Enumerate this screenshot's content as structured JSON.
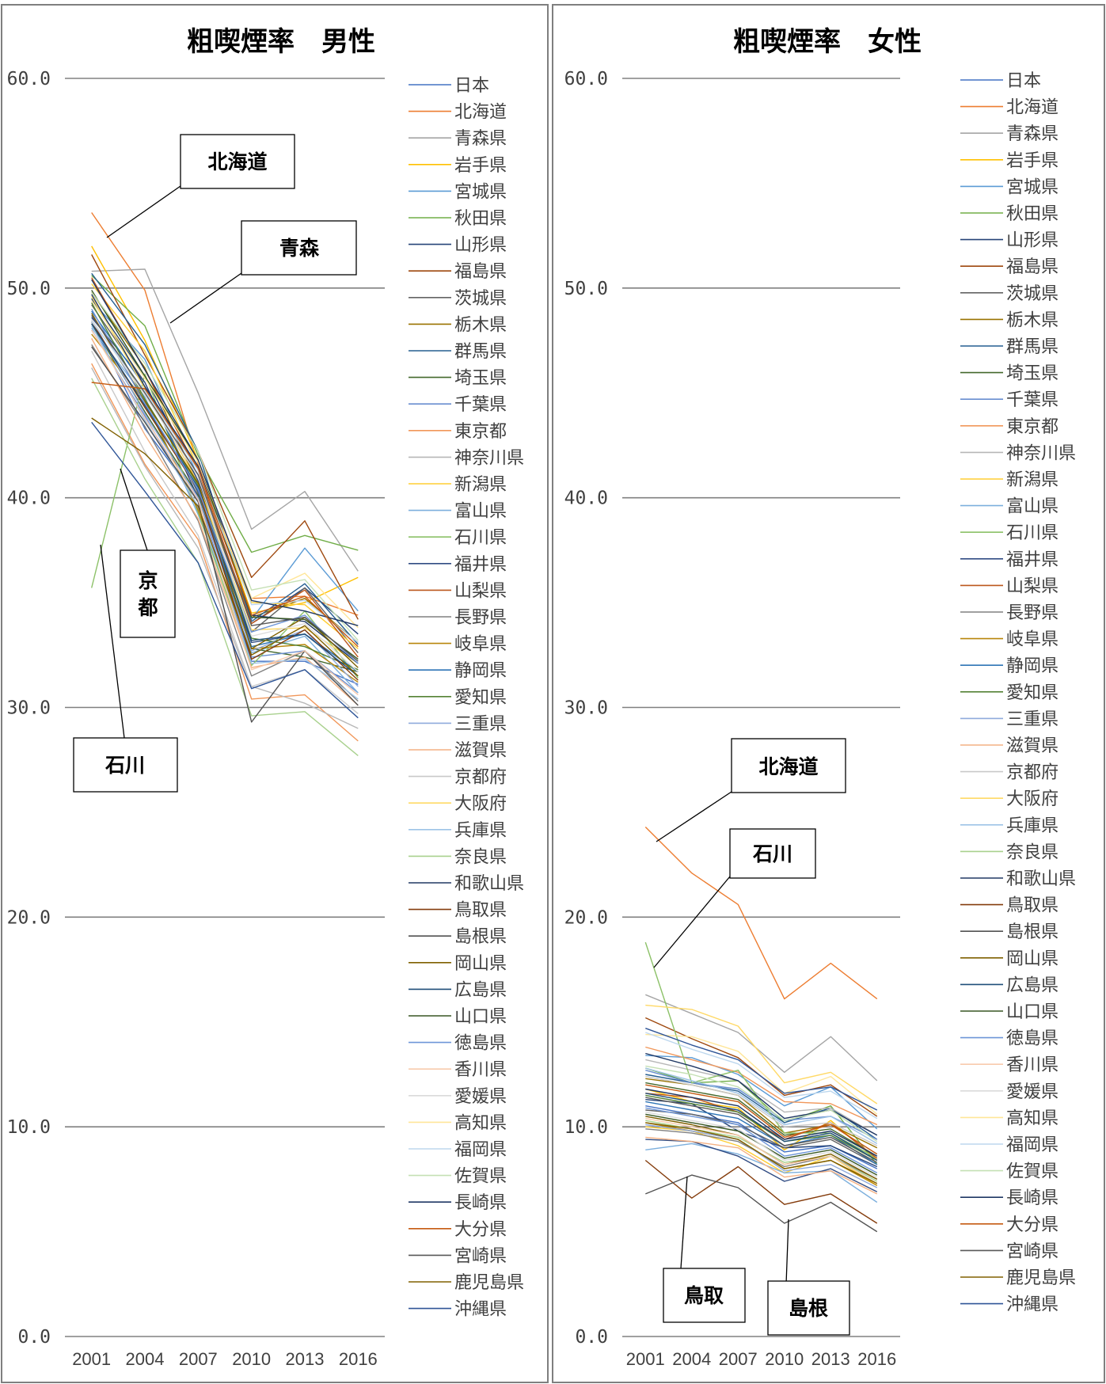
{
  "colors": [
    "#4472C4",
    "#ED7D31",
    "#A5A5A5",
    "#FFC000",
    "#5B9BD5",
    "#70AD47",
    "#264478",
    "#9E480E",
    "#636363",
    "#997300",
    "#255E91",
    "#43682B",
    "#698ED0",
    "#F1975A",
    "#B7B7B7",
    "#FFCD33",
    "#7CAFDD",
    "#8CC168",
    "#314C83",
    "#BB571C",
    "#808080",
    "#B8860B",
    "#2E75B6",
    "#548235",
    "#8FAADC",
    "#F4B183",
    "#C9C9C9",
    "#FFD966",
    "#9DC3E6",
    "#A9D18E",
    "#203864",
    "#843C0C",
    "#525252",
    "#7F6000",
    "#1F4E79",
    "#385723",
    "#6E96D8",
    "#F8CBAD",
    "#DBDBDB",
    "#FFE699",
    "#BDD7EE",
    "#C5E0B4",
    "#1F3864",
    "#C55A11",
    "#595959",
    "#806000",
    "#2F5597"
  ],
  "chart_data": [
    {
      "type": "line",
      "title": "粗喫煙率　男性",
      "x": [
        "2001",
        "2004",
        "2007",
        "2010",
        "2013",
        "2016"
      ],
      "ylim": [
        0,
        60
      ],
      "yticks": [
        "0.0",
        "10.0",
        "20.0",
        "30.0",
        "40.0",
        "50.0",
        "60.0"
      ],
      "grid": true,
      "legend_position": "right",
      "series": [
        {
          "name": "日本",
          "values": [
            48.4,
            43.3,
            39.9,
            32.2,
            32.2,
            31.1
          ]
        },
        {
          "name": "北海道",
          "values": [
            53.6,
            49.9,
            41.6,
            35.2,
            35.3,
            34.4
          ]
        },
        {
          "name": "青森県",
          "values": [
            50.8,
            50.9,
            45.0,
            38.5,
            40.3,
            36.5
          ]
        },
        {
          "name": "岩手県",
          "values": [
            52.0,
            47.5,
            41.8,
            34.5,
            35.0,
            36.2
          ]
        },
        {
          "name": "宮城県",
          "values": [
            49.4,
            46.6,
            41.0,
            34.2,
            37.6,
            34.6
          ]
        },
        {
          "name": "秋田県",
          "values": [
            50.6,
            48.2,
            42.0,
            37.4,
            38.2,
            37.5
          ]
        },
        {
          "name": "山形県",
          "values": [
            49.5,
            45.8,
            40.8,
            34.0,
            35.7,
            33.5
          ]
        },
        {
          "name": "福島県",
          "values": [
            51.6,
            46.8,
            42.2,
            36.2,
            38.9,
            34.2
          ]
        },
        {
          "name": "茨城県",
          "values": [
            49.2,
            45.5,
            40.2,
            33.6,
            35.7,
            32.6
          ]
        },
        {
          "name": "栃木県",
          "values": [
            49.8,
            46.2,
            40.6,
            34.3,
            35.2,
            33.1
          ]
        },
        {
          "name": "群馬県",
          "values": [
            50.7,
            47.3,
            42.2,
            34.1,
            35.9,
            33.0
          ]
        },
        {
          "name": "埼玉県",
          "values": [
            48.3,
            44.1,
            40.1,
            32.8,
            32.4,
            31.7
          ]
        },
        {
          "name": "千葉県",
          "values": [
            48.0,
            43.9,
            39.5,
            32.4,
            32.7,
            30.7
          ]
        },
        {
          "name": "東京都",
          "values": [
            46.4,
            41.6,
            38.0,
            30.4,
            30.6,
            28.4
          ]
        },
        {
          "name": "神奈川県",
          "values": [
            46.2,
            41.5,
            37.6,
            31.0,
            30.2,
            29.0
          ]
        },
        {
          "name": "新潟県",
          "values": [
            50.2,
            47.0,
            41.4,
            35.0,
            34.9,
            32.8
          ]
        },
        {
          "name": "富山県",
          "values": [
            48.1,
            44.8,
            39.2,
            32.6,
            33.4,
            30.7
          ]
        },
        {
          "name": "石川県",
          "values": [
            35.7,
            45.9,
            39.3,
            32.0,
            34.6,
            31.4
          ]
        },
        {
          "name": "福井県",
          "values": [
            48.6,
            45.5,
            40.0,
            33.1,
            33.5,
            31.7
          ]
        },
        {
          "name": "山梨県",
          "values": [
            50.5,
            46.1,
            41.3,
            34.0,
            35.6,
            32.4
          ]
        },
        {
          "name": "長野県",
          "values": [
            47.3,
            43.4,
            38.9,
            31.5,
            32.7,
            30.3
          ]
        },
        {
          "name": "岐阜県",
          "values": [
            47.8,
            44.6,
            39.4,
            32.8,
            33.0,
            31.2
          ]
        },
        {
          "name": "静岡県",
          "values": [
            48.9,
            45.3,
            40.3,
            32.9,
            33.5,
            31.7
          ]
        },
        {
          "name": "愛知県",
          "values": [
            49.3,
            44.7,
            40.6,
            33.3,
            32.9,
            31.8
          ]
        },
        {
          "name": "三重県",
          "values": [
            48.5,
            44.0,
            40.0,
            32.7,
            33.7,
            31.0
          ]
        },
        {
          "name": "滋賀県",
          "values": [
            47.6,
            43.0,
            39.0,
            31.9,
            32.4,
            30.1
          ]
        },
        {
          "name": "京都府",
          "values": [
            47.0,
            42.2,
            38.2,
            31.0,
            31.8,
            29.7
          ]
        },
        {
          "name": "大阪府",
          "values": [
            49.6,
            45.2,
            40.7,
            33.7,
            33.8,
            32.1
          ]
        },
        {
          "name": "兵庫県",
          "values": [
            48.2,
            43.7,
            39.6,
            32.1,
            32.3,
            30.4
          ]
        },
        {
          "name": "奈良県",
          "values": [
            45.7,
            40.9,
            36.9,
            29.6,
            29.8,
            27.7
          ]
        },
        {
          "name": "和歌山県",
          "values": [
            49.7,
            45.3,
            41.5,
            34.4,
            34.1,
            32.1
          ]
        },
        {
          "name": "鳥取県",
          "values": [
            48.4,
            44.3,
            40.4,
            32.3,
            33.7,
            31.3
          ]
        },
        {
          "name": "島根県",
          "values": [
            47.2,
            43.6,
            39.8,
            29.3,
            32.7,
            30.1
          ]
        },
        {
          "name": "岡山県",
          "values": [
            48.8,
            44.6,
            40.7,
            32.8,
            34.3,
            31.9
          ]
        },
        {
          "name": "広島県",
          "values": [
            48.3,
            44.4,
            40.5,
            33.2,
            33.5,
            31.5
          ]
        },
        {
          "name": "山口県",
          "values": [
            49.9,
            45.8,
            41.8,
            34.3,
            34.2,
            32.3
          ]
        },
        {
          "name": "徳島県",
          "values": [
            49.0,
            44.5,
            40.4,
            33.6,
            34.4,
            32.1
          ]
        },
        {
          "name": "香川県",
          "values": [
            48.0,
            43.8,
            39.9,
            31.8,
            32.7,
            30.6
          ]
        },
        {
          "name": "愛媛県",
          "values": [
            48.5,
            44.9,
            41.0,
            33.4,
            34.0,
            31.7
          ]
        },
        {
          "name": "高知県",
          "values": [
            49.4,
            45.7,
            41.7,
            35.2,
            36.4,
            33.8
          ]
        },
        {
          "name": "福岡県",
          "values": [
            48.4,
            45.1,
            41.3,
            34.9,
            35.1,
            33.1
          ]
        },
        {
          "name": "佐賀県",
          "values": [
            49.8,
            46.4,
            42.2,
            35.6,
            36.1,
            33.2
          ]
        },
        {
          "name": "長崎県",
          "values": [
            50.4,
            46.1,
            41.8,
            35.1,
            34.6,
            33.9
          ]
        },
        {
          "name": "大分県",
          "values": [
            45.5,
            45.2,
            41.4,
            34.4,
            35.3,
            32.9
          ]
        },
        {
          "name": "宮崎県",
          "values": [
            48.7,
            45.0,
            41.1,
            33.9,
            34.3,
            32.2
          ]
        },
        {
          "name": "鹿児島県",
          "values": [
            43.8,
            42.1,
            39.6,
            32.5,
            33.9,
            31.5
          ]
        },
        {
          "name": "沖縄県",
          "values": [
            43.6,
            40.3,
            36.9,
            30.9,
            31.8,
            29.5
          ]
        }
      ],
      "annotations": [
        "北海道",
        "青森",
        "京都",
        "石川"
      ]
    },
    {
      "type": "line",
      "title": "粗喫煙率　女性",
      "x": [
        "2001",
        "2004",
        "2007",
        "2010",
        "2013",
        "2016"
      ],
      "ylim": [
        0,
        60
      ],
      "yticks": [
        "0.0",
        "10.0",
        "20.0",
        "30.0",
        "40.0",
        "50.0",
        "60.0"
      ],
      "grid": true,
      "legend_position": "right",
      "series": [
        {
          "name": "日本",
          "values": [
            11.0,
            10.6,
            10.2,
            8.8,
            9.1,
            8.0
          ]
        },
        {
          "name": "北海道",
          "values": [
            24.3,
            22.1,
            20.6,
            16.1,
            17.8,
            16.1
          ]
        },
        {
          "name": "青森県",
          "values": [
            16.3,
            15.4,
            14.5,
            12.6,
            14.3,
            12.2
          ]
        },
        {
          "name": "岩手県",
          "values": [
            11.8,
            11.2,
            10.9,
            8.9,
            10.3,
            8.4
          ]
        },
        {
          "name": "宮城県",
          "values": [
            13.4,
            13.3,
            12.5,
            11.0,
            11.9,
            9.9
          ]
        },
        {
          "name": "秋田県",
          "values": [
            12.8,
            12.1,
            12.2,
            10.2,
            11.0,
            8.2
          ]
        },
        {
          "name": "山形県",
          "values": [
            11.3,
            11.1,
            9.8,
            9.0,
            9.1,
            8.1
          ]
        },
        {
          "name": "福島県",
          "values": [
            15.2,
            14.2,
            13.3,
            11.5,
            12.0,
            10.5
          ]
        },
        {
          "name": "茨城県",
          "values": [
            10.8,
            10.6,
            10.1,
            9.0,
            9.4,
            8.2
          ]
        },
        {
          "name": "栃木県",
          "values": [
            12.3,
            12.0,
            11.5,
            9.7,
            10.1,
            9.0
          ]
        },
        {
          "name": "群馬県",
          "values": [
            12.5,
            12.1,
            11.7,
            10.2,
            10.9,
            9.4
          ]
        },
        {
          "name": "埼玉県",
          "values": [
            12.1,
            11.7,
            11.3,
            9.6,
            9.9,
            8.6
          ]
        },
        {
          "name": "千葉県",
          "values": [
            12.7,
            12.1,
            11.8,
            10.3,
            10.5,
            9.4
          ]
        },
        {
          "name": "東京都",
          "values": [
            13.8,
            13.2,
            12.6,
            11.2,
            11.1,
            10.1
          ]
        },
        {
          "name": "神奈川県",
          "values": [
            13.2,
            12.7,
            12.2,
            10.7,
            10.9,
            9.6
          ]
        },
        {
          "name": "新潟県",
          "values": [
            10.0,
            9.8,
            9.1,
            7.8,
            8.6,
            7.2
          ]
        },
        {
          "name": "富山県",
          "values": [
            8.9,
            9.2,
            8.7,
            7.8,
            7.9,
            6.4
          ]
        },
        {
          "name": "石川県",
          "values": [
            18.8,
            12.1,
            12.7,
            9.7,
            9.7,
            8.5
          ]
        },
        {
          "name": "福井県",
          "values": [
            9.4,
            9.3,
            8.6,
            7.4,
            8.0,
            6.9
          ]
        },
        {
          "name": "山梨県",
          "values": [
            11.6,
            11.4,
            10.7,
            9.4,
            10.2,
            8.5
          ]
        },
        {
          "name": "長野県",
          "values": [
            9.9,
            9.7,
            9.3,
            8.1,
            8.6,
            7.5
          ]
        },
        {
          "name": "岐阜県",
          "values": [
            10.2,
            9.8,
            9.4,
            8.0,
            8.4,
            7.2
          ]
        },
        {
          "name": "静岡県",
          "values": [
            11.2,
            10.8,
            10.4,
            9.1,
            9.6,
            8.2
          ]
        },
        {
          "name": "愛知県",
          "values": [
            11.5,
            11.1,
            10.7,
            9.3,
            9.6,
            8.4
          ]
        },
        {
          "name": "三重県",
          "values": [
            10.1,
            9.8,
            9.4,
            7.9,
            8.2,
            7.1
          ]
        },
        {
          "name": "滋賀県",
          "values": [
            9.5,
            9.3,
            9.0,
            7.6,
            7.9,
            6.8
          ]
        },
        {
          "name": "京都府",
          "values": [
            12.4,
            12.0,
            11.5,
            10.0,
            10.2,
            9.1
          ]
        },
        {
          "name": "大阪府",
          "values": [
            15.8,
            15.6,
            14.8,
            12.1,
            12.6,
            11.1
          ]
        },
        {
          "name": "兵庫県",
          "values": [
            12.8,
            12.2,
            11.6,
            10.1,
            10.5,
            9.2
          ]
        },
        {
          "name": "奈良県",
          "values": [
            10.3,
            9.9,
            9.5,
            8.3,
            8.6,
            7.4
          ]
        },
        {
          "name": "和歌山県",
          "values": [
            13.5,
            12.9,
            12.2,
            10.4,
            10.8,
            9.6
          ]
        },
        {
          "name": "鳥取県",
          "values": [
            8.4,
            6.6,
            8.1,
            6.3,
            6.8,
            5.4
          ]
        },
        {
          "name": "島根県",
          "values": [
            6.8,
            7.7,
            7.1,
            5.4,
            6.4,
            5.0
          ]
        },
        {
          "name": "岡山県",
          "values": [
            10.5,
            10.1,
            9.6,
            8.2,
            8.7,
            7.5
          ]
        },
        {
          "name": "広島県",
          "values": [
            11.6,
            11.2,
            10.8,
            9.3,
            9.7,
            8.4
          ]
        },
        {
          "name": "山口県",
          "values": [
            10.6,
            10.2,
            9.8,
            8.5,
            8.9,
            7.7
          ]
        },
        {
          "name": "徳島県",
          "values": [
            10.9,
            10.5,
            10.1,
            8.6,
            9.0,
            7.8
          ]
        },
        {
          "name": "香川県",
          "values": [
            10.4,
            10.0,
            9.6,
            8.2,
            8.6,
            7.3
          ]
        },
        {
          "name": "愛媛県",
          "values": [
            10.7,
            10.3,
            9.9,
            8.4,
            8.8,
            7.6
          ]
        },
        {
          "name": "高知県",
          "values": [
            14.4,
            14.3,
            13.6,
            11.6,
            12.4,
            10.6
          ]
        },
        {
          "name": "福岡県",
          "values": [
            14.5,
            13.7,
            13.0,
            11.4,
            11.7,
            10.4
          ]
        },
        {
          "name": "佐賀県",
          "values": [
            12.9,
            12.5,
            11.9,
            10.3,
            10.8,
            9.3
          ]
        },
        {
          "name": "長崎県",
          "values": [
            11.8,
            11.4,
            11.0,
            9.4,
            9.8,
            8.6
          ]
        },
        {
          "name": "大分県",
          "values": [
            12.0,
            11.6,
            11.2,
            9.5,
            10.1,
            8.7
          ]
        },
        {
          "name": "宮崎県",
          "values": [
            11.4,
            11.0,
            10.6,
            9.1,
            9.5,
            8.3
          ]
        },
        {
          "name": "鹿児島県",
          "values": [
            10.2,
            9.9,
            9.4,
            8.0,
            8.4,
            7.3
          ]
        },
        {
          "name": "沖縄県",
          "values": [
            14.7,
            13.9,
            13.2,
            11.6,
            11.9,
            10.8
          ]
        }
      ],
      "annotations": [
        "北海道",
        "石川",
        "鳥取",
        "島根"
      ]
    }
  ]
}
